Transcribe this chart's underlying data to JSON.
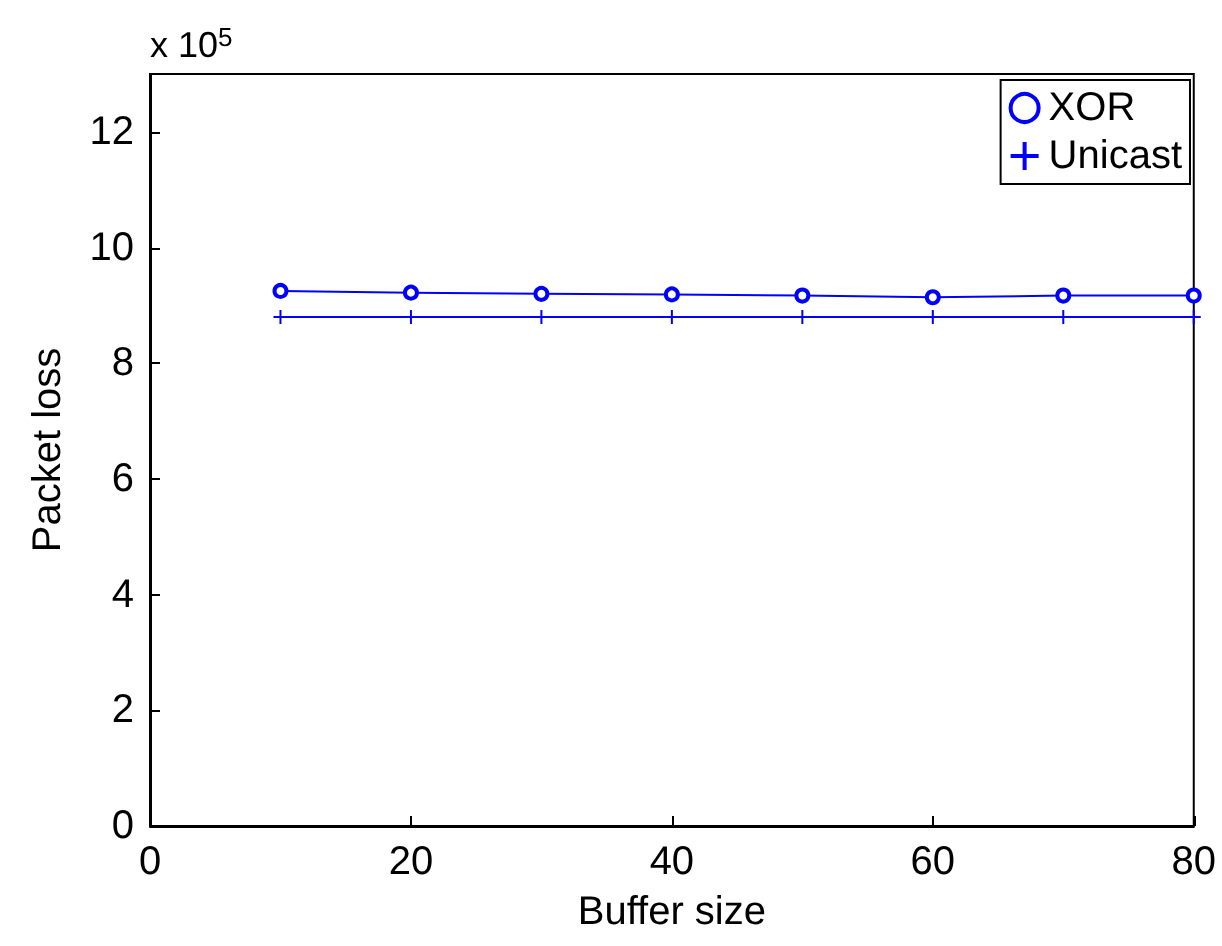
{
  "chart_data": {
    "type": "line",
    "xlabel": "Buffer size",
    "ylabel": "Packet loss",
    "annotations": [
      "x 10$^{5}$"
    ],
    "x": [
      10,
      20,
      30,
      40,
      50,
      60,
      70,
      80
    ],
    "series": [
      {
        "name": "XOR",
        "color": "#0000ff",
        "marker": "circle",
        "values": [
          9.25,
          9.22,
          9.2,
          9.19,
          9.17,
          9.14,
          9.17,
          9.17
        ]
      },
      {
        "name": "Unicast",
        "color": "#0000ff",
        "marker": "cross",
        "values": [
          8.8,
          8.8,
          8.8,
          8.8,
          8.8,
          8.8,
          8.8,
          8.8
        ]
      }
    ],
    "xlim": [
      0,
      80
    ],
    "xticks": [
      0,
      20,
      40,
      60,
      80
    ],
    "ylim": [
      0,
      13
    ],
    "yticks": [
      0,
      2,
      4,
      6,
      8,
      10,
      12
    ],
    "grid": false,
    "legend": "top right",
    "line_style": "solid"
  }
}
